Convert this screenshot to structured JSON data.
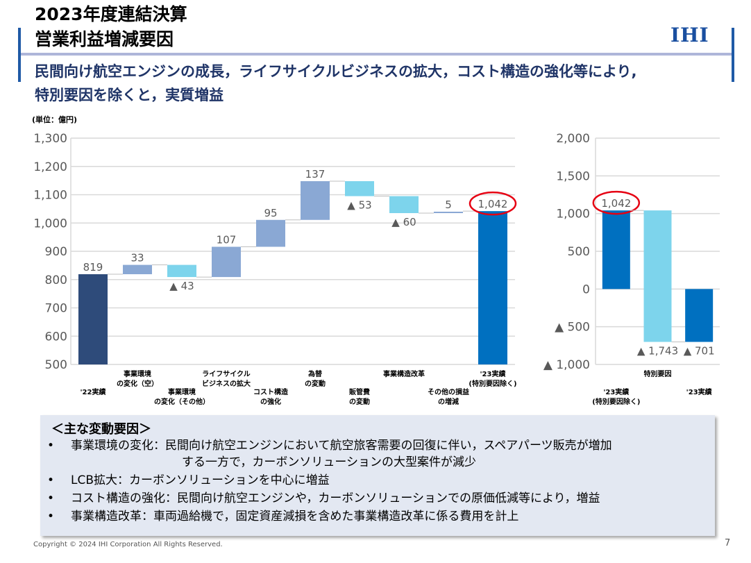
{
  "header": {
    "title_line1": "2023年度連結決算",
    "title_line2": "営業利益増減要因",
    "logo": "IHI",
    "subtitle_line1": "民間向け航空エンジンの成長，ライフサイクルビジネスの拡大，コスト構造の強化等により,",
    "subtitle_line2": "特別要因を除くと，実質増益",
    "unit": "(単位：億円)"
  },
  "colors": {
    "start": "#2e4b7a",
    "increase": "#8aa8d4",
    "decrease": "#7dd4ec",
    "total": "#0070c0",
    "highlight": "#e60012",
    "accent": "#1f5aa6"
  },
  "chart_data": [
    {
      "type": "waterfall",
      "ylim": [
        500,
        1300
      ],
      "yticks": [
        500,
        600,
        700,
        800,
        900,
        1000,
        1100,
        1200,
        1300
      ],
      "ytick_labels": [
        "500",
        "600",
        "700",
        "800",
        "900",
        "1,000",
        "1,100",
        "1,200",
        "1,300"
      ],
      "grid": true,
      "categories": [
        "'22実績",
        "事業環境\nの変化（空）",
        "事業環境\nの変化（その他）",
        "ライフサイクル\nビジネスの拡大",
        "コスト構造\nの強化",
        "為替\nの変動",
        "販管費\nの変動",
        "事業構造改革",
        "その他の損益\nの増減",
        "'23実績\n(特別要因除く)"
      ],
      "kinds": [
        "start",
        "delta",
        "delta",
        "delta",
        "delta",
        "delta",
        "delta",
        "delta",
        "delta",
        "total"
      ],
      "values": [
        819,
        33,
        -43,
        107,
        95,
        137,
        -53,
        -60,
        5,
        1042
      ],
      "data_labels": [
        "819",
        "33",
        "▲ 43",
        "107",
        "95",
        "137",
        "▲ 53",
        "▲ 60",
        "5",
        "1,042"
      ],
      "highlighted": [
        9
      ]
    },
    {
      "type": "waterfall",
      "ylim": [
        -1000,
        2000
      ],
      "yticks": [
        -1000,
        -500,
        0,
        500,
        1000,
        1500,
        2000
      ],
      "ytick_labels": [
        "▲ 1,000",
        "▲ 500",
        "0",
        "500",
        "1,000",
        "1,500",
        "2,000"
      ],
      "grid": true,
      "categories": [
        "'23実績\n(特別要因除く)",
        "特別要因",
        "'23実績"
      ],
      "kinds": [
        "total",
        "delta",
        "total"
      ],
      "values": [
        1042,
        -1743,
        -701
      ],
      "data_labels": [
        "1,042",
        "▲ 1,743",
        "▲ 701"
      ],
      "highlighted": [
        0
      ]
    }
  ],
  "factors": {
    "title": "＜主な変動要因＞",
    "bullet": "•",
    "items": [
      {
        "text": "事業環境の変化：民間向け航空エンジンにおいて航空旅客需要の回復に伴い，スペアパーツ販売が増加",
        "cont": "する一方で，カーボンソリューションの大型案件が減少"
      },
      {
        "text": "LCB拡大：カーボンソリューションを中心に増益"
      },
      {
        "text": "コスト構造の強化：民間向け航空エンジンや，カーボンソリューションでの原価低減等により，増益"
      },
      {
        "text": "事業構造改革：車両過給機で，固定資産減損を含めた事業構造改革に係る費用を計上"
      }
    ]
  },
  "footer": {
    "copyright": "Copyright © 2024 IHI Corporation All Rights Reserved.",
    "page": "7"
  }
}
